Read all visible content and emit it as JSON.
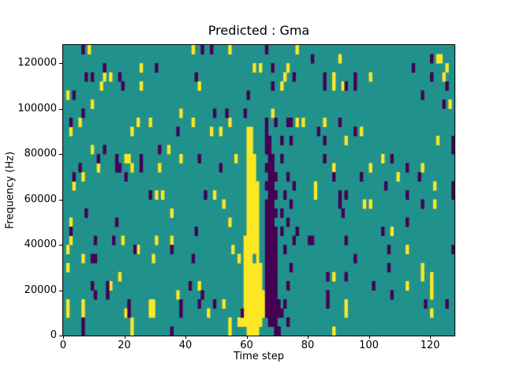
{
  "chart_data": {
    "type": "heatmap",
    "title": "Predicted : Gma",
    "xlabel": "Time step",
    "ylabel": "Frequency (Hz)",
    "x_range": [
      0,
      128
    ],
    "y_range": [
      0,
      128000
    ],
    "x_ticks": [
      0,
      20,
      40,
      60,
      80,
      100,
      120
    ],
    "y_ticks": [
      0,
      20000,
      40000,
      60000,
      80000,
      100000,
      120000
    ],
    "grid": {
      "cols": 128,
      "rows": 32,
      "cell_hz": 4000
    },
    "legend": "none",
    "colors": {
      "background_mid": "#21918c",
      "low_purple": "#440154",
      "high_yellow": "#fde725",
      "frame": "#000000",
      "figure_bg": "#ffffff"
    },
    "yellow_band_rows": [
      [
        88000,
        60,
        61
      ],
      [
        84000,
        60,
        61
      ],
      [
        80000,
        60,
        61
      ],
      [
        76000,
        60,
        62
      ],
      [
        72000,
        60,
        62
      ],
      [
        68000,
        60,
        62
      ],
      [
        64000,
        60,
        63
      ],
      [
        60000,
        60,
        63
      ],
      [
        56000,
        60,
        63
      ],
      [
        52000,
        60,
        63
      ],
      [
        48000,
        60,
        63
      ],
      [
        44000,
        60,
        63
      ],
      [
        40000,
        59,
        63
      ],
      [
        36000,
        59,
        63
      ],
      [
        32000,
        59,
        63
      ],
      [
        28000,
        59,
        64
      ],
      [
        24000,
        59,
        64
      ],
      [
        20000,
        59,
        64
      ],
      [
        16000,
        59,
        65
      ],
      [
        12000,
        59,
        65
      ],
      [
        8000,
        58,
        65
      ],
      [
        4000,
        57,
        64
      ],
      [
        0,
        60,
        63
      ]
    ],
    "purple_band_rows": [
      [
        84000,
        66,
        67
      ],
      [
        80000,
        66,
        67
      ],
      [
        76000,
        67,
        68
      ],
      [
        72000,
        66,
        68
      ],
      [
        68000,
        67,
        69
      ],
      [
        64000,
        66,
        68
      ],
      [
        60000,
        67,
        69
      ],
      [
        56000,
        66,
        68
      ],
      [
        52000,
        66,
        69
      ],
      [
        48000,
        66,
        68
      ],
      [
        44000,
        66,
        69
      ],
      [
        40000,
        66,
        69
      ],
      [
        36000,
        66,
        69
      ],
      [
        32000,
        66,
        69
      ],
      [
        28000,
        66,
        69
      ],
      [
        24000,
        66,
        69
      ],
      [
        20000,
        66,
        69
      ],
      [
        16000,
        66,
        69
      ],
      [
        12000,
        66,
        70
      ],
      [
        8000,
        66,
        70
      ],
      [
        4000,
        67,
        69
      ],
      [
        0,
        69,
        70
      ]
    ],
    "band_gap_cells": [
      [
        62,
        32000
      ]
    ],
    "yellow_cells": [
      [
        8,
        124000
      ],
      [
        42,
        124000
      ],
      [
        54,
        124000
      ],
      [
        76,
        124000
      ],
      [
        90,
        120000
      ],
      [
        122,
        120000
      ],
      [
        123,
        120000
      ],
      [
        25,
        116000
      ],
      [
        62,
        116000
      ],
      [
        64,
        116000
      ],
      [
        73,
        116000
      ],
      [
        125,
        116000
      ],
      [
        13,
        112000
      ],
      [
        15,
        112000
      ],
      [
        72,
        112000
      ],
      [
        88,
        112000
      ],
      [
        100,
        112000
      ],
      [
        124,
        112000
      ],
      [
        12,
        108000
      ],
      [
        25,
        108000
      ],
      [
        44,
        108000
      ],
      [
        71,
        108000
      ],
      [
        88,
        108000
      ],
      [
        91,
        108000
      ],
      [
        1,
        104000
      ],
      [
        9,
        100000
      ],
      [
        126,
        100000
      ],
      [
        38,
        96000
      ],
      [
        68,
        96000
      ],
      [
        5,
        92000
      ],
      [
        24,
        92000
      ],
      [
        28,
        92000
      ],
      [
        42,
        92000
      ],
      [
        54,
        92000
      ],
      [
        76,
        92000
      ],
      [
        78,
        92000
      ],
      [
        85,
        92000
      ],
      [
        2,
        88000
      ],
      [
        22,
        88000
      ],
      [
        48,
        88000
      ],
      [
        51,
        88000
      ],
      [
        97,
        88000
      ],
      [
        92,
        84000
      ],
      [
        122,
        84000
      ],
      [
        9,
        80000
      ],
      [
        34,
        80000
      ],
      [
        20,
        76000
      ],
      [
        21,
        76000
      ],
      [
        38,
        76000
      ],
      [
        56,
        76000
      ],
      [
        104,
        76000
      ],
      [
        11,
        72000
      ],
      [
        22,
        72000
      ],
      [
        31,
        72000
      ],
      [
        88,
        72000
      ],
      [
        100,
        72000
      ],
      [
        117,
        72000
      ],
      [
        6,
        68000
      ],
      [
        109,
        68000
      ],
      [
        3,
        64000
      ],
      [
        82,
        64000
      ],
      [
        121,
        64000
      ],
      [
        30,
        60000
      ],
      [
        32,
        60000
      ],
      [
        49,
        60000
      ],
      [
        82,
        60000
      ],
      [
        52,
        56000
      ],
      [
        98,
        56000
      ],
      [
        100,
        56000
      ],
      [
        121,
        56000
      ],
      [
        35,
        52000
      ],
      [
        2,
        48000
      ],
      [
        54,
        48000
      ],
      [
        107,
        44000
      ],
      [
        2,
        40000
      ],
      [
        19,
        40000
      ],
      [
        30,
        40000
      ],
      [
        35,
        40000
      ],
      [
        1,
        36000
      ],
      [
        24,
        36000
      ],
      [
        55,
        36000
      ],
      [
        112,
        36000
      ],
      [
        6,
        32000
      ],
      [
        29,
        32000
      ],
      [
        57,
        32000
      ],
      [
        1,
        28000
      ],
      [
        117,
        28000
      ],
      [
        18,
        24000
      ],
      [
        88,
        24000
      ],
      [
        117,
        24000
      ],
      [
        120,
        24000
      ],
      [
        15,
        20000
      ],
      [
        44,
        20000
      ],
      [
        112,
        20000
      ],
      [
        120,
        20000
      ],
      [
        37,
        16000
      ],
      [
        120,
        16000
      ],
      [
        1,
        12000
      ],
      [
        6,
        12000
      ],
      [
        28,
        12000
      ],
      [
        29,
        12000
      ],
      [
        52,
        12000
      ],
      [
        92,
        12000
      ],
      [
        1,
        8000
      ],
      [
        6,
        8000
      ],
      [
        20,
        8000
      ],
      [
        28,
        8000
      ],
      [
        29,
        8000
      ],
      [
        47,
        8000
      ],
      [
        92,
        8000
      ],
      [
        120,
        8000
      ],
      [
        22,
        4000
      ],
      [
        54,
        4000
      ],
      [
        22,
        0
      ],
      [
        54,
        0
      ],
      [
        88,
        0
      ]
    ],
    "purple_cells": [
      [
        6,
        124000
      ],
      [
        45,
        124000
      ],
      [
        48,
        124000
      ],
      [
        66,
        124000
      ],
      [
        81,
        120000
      ],
      [
        120,
        120000
      ],
      [
        13,
        116000
      ],
      [
        30,
        116000
      ],
      [
        68,
        116000
      ],
      [
        114,
        116000
      ],
      [
        7,
        112000
      ],
      [
        9,
        112000
      ],
      [
        18,
        112000
      ],
      [
        43,
        112000
      ],
      [
        75,
        112000
      ],
      [
        85,
        112000
      ],
      [
        95,
        112000
      ],
      [
        120,
        112000
      ],
      [
        19,
        108000
      ],
      [
        68,
        108000
      ],
      [
        85,
        108000
      ],
      [
        92,
        108000
      ],
      [
        95,
        108000
      ],
      [
        125,
        108000
      ],
      [
        3,
        104000
      ],
      [
        60,
        104000
      ],
      [
        117,
        104000
      ],
      [
        124,
        100000
      ],
      [
        6,
        96000
      ],
      [
        49,
        96000
      ],
      [
        53,
        96000
      ],
      [
        59,
        96000
      ],
      [
        2,
        92000
      ],
      [
        66,
        92000
      ],
      [
        69,
        92000
      ],
      [
        73,
        92000
      ],
      [
        74,
        92000
      ],
      [
        90,
        92000
      ],
      [
        37,
        88000
      ],
      [
        66,
        88000
      ],
      [
        83,
        88000
      ],
      [
        95,
        88000
      ],
      [
        71,
        84000
      ],
      [
        74,
        84000
      ],
      [
        85,
        84000
      ],
      [
        127,
        84000
      ],
      [
        13,
        80000
      ],
      [
        31,
        80000
      ],
      [
        127,
        80000
      ],
      [
        11,
        76000
      ],
      [
        17,
        76000
      ],
      [
        25,
        76000
      ],
      [
        44,
        76000
      ],
      [
        71,
        76000
      ],
      [
        85,
        76000
      ],
      [
        107,
        76000
      ],
      [
        5,
        72000
      ],
      [
        17,
        72000
      ],
      [
        18,
        72000
      ],
      [
        25,
        72000
      ],
      [
        51,
        72000
      ],
      [
        112,
        72000
      ],
      [
        3,
        68000
      ],
      [
        20,
        68000
      ],
      [
        73,
        68000
      ],
      [
        88,
        68000
      ],
      [
        97,
        68000
      ],
      [
        116,
        68000
      ],
      [
        75,
        64000
      ],
      [
        105,
        64000
      ],
      [
        127,
        64000
      ],
      [
        28,
        60000
      ],
      [
        46,
        60000
      ],
      [
        72,
        60000
      ],
      [
        90,
        60000
      ],
      [
        92,
        60000
      ],
      [
        112,
        60000
      ],
      [
        127,
        60000
      ],
      [
        74,
        56000
      ],
      [
        90,
        56000
      ],
      [
        117,
        56000
      ],
      [
        7,
        52000
      ],
      [
        71,
        52000
      ],
      [
        91,
        52000
      ],
      [
        17,
        48000
      ],
      [
        73,
        48000
      ],
      [
        112,
        48000
      ],
      [
        2,
        44000
      ],
      [
        43,
        44000
      ],
      [
        71,
        44000
      ],
      [
        76,
        44000
      ],
      [
        104,
        44000
      ],
      [
        10,
        40000
      ],
      [
        16,
        40000
      ],
      [
        75,
        40000
      ],
      [
        80,
        40000
      ],
      [
        81,
        40000
      ],
      [
        92,
        40000
      ],
      [
        23,
        36000
      ],
      [
        35,
        36000
      ],
      [
        72,
        36000
      ],
      [
        106,
        36000
      ],
      [
        127,
        36000
      ],
      [
        9,
        32000
      ],
      [
        10,
        32000
      ],
      [
        42,
        32000
      ],
      [
        95,
        32000
      ],
      [
        74,
        28000
      ],
      [
        106,
        28000
      ],
      [
        86,
        24000
      ],
      [
        92,
        24000
      ],
      [
        9,
        20000
      ],
      [
        14,
        20000
      ],
      [
        41,
        20000
      ],
      [
        73,
        20000
      ],
      [
        101,
        20000
      ],
      [
        10,
        16000
      ],
      [
        14,
        16000
      ],
      [
        45,
        16000
      ],
      [
        86,
        16000
      ],
      [
        107,
        16000
      ],
      [
        21,
        12000
      ],
      [
        38,
        12000
      ],
      [
        44,
        12000
      ],
      [
        49,
        12000
      ],
      [
        72,
        12000
      ],
      [
        86,
        12000
      ],
      [
        118,
        12000
      ],
      [
        125,
        12000
      ],
      [
        21,
        8000
      ],
      [
        38,
        8000
      ],
      [
        58,
        8000
      ],
      [
        71,
        8000
      ],
      [
        6,
        4000
      ],
      [
        73,
        4000
      ],
      [
        6,
        0
      ],
      [
        35,
        0
      ],
      [
        70,
        0
      ]
    ]
  }
}
